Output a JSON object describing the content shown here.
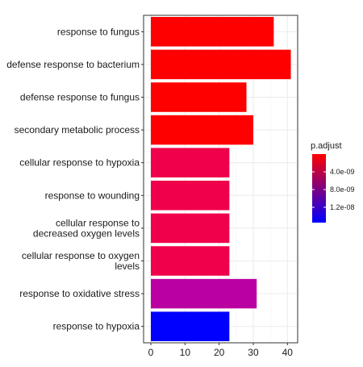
{
  "chart_data": {
    "type": "bar",
    "orientation": "horizontal",
    "title": "",
    "xlabel": "",
    "ylabel": "",
    "grid": true,
    "legend_placement": "right",
    "xlim": [
      0,
      43
    ],
    "x_ticks": [
      0,
      10,
      20,
      30,
      40
    ],
    "categories": [
      "response to fungus",
      "defense response to bacterium",
      "defense response to fungus",
      "secondary metabolic process",
      "cellular response to hypoxia",
      "response to wounding",
      "cellular response to\ndecreased oxygen levels",
      "cellular response to oxygen\nlevels",
      "response to oxidative stress",
      "response to hypoxia"
    ],
    "values": [
      36,
      41,
      28,
      30,
      23,
      23,
      23,
      23,
      31,
      23
    ],
    "colors": [
      "#ff0000",
      "#ff0000",
      "#ff0000",
      "#ff0000",
      "#f0004a",
      "#f0004a",
      "#f0004a",
      "#f0004a",
      "#bb00a2",
      "#0000ff"
    ],
    "legend": {
      "title": "p.adjust",
      "labels": [
        "4.0e-09",
        "8.0e-09",
        "1.2e-08"
      ],
      "gradient": [
        "#ff0000",
        "#bf0040",
        "#7f0080",
        "#3f00c0",
        "#0000ff"
      ]
    }
  }
}
